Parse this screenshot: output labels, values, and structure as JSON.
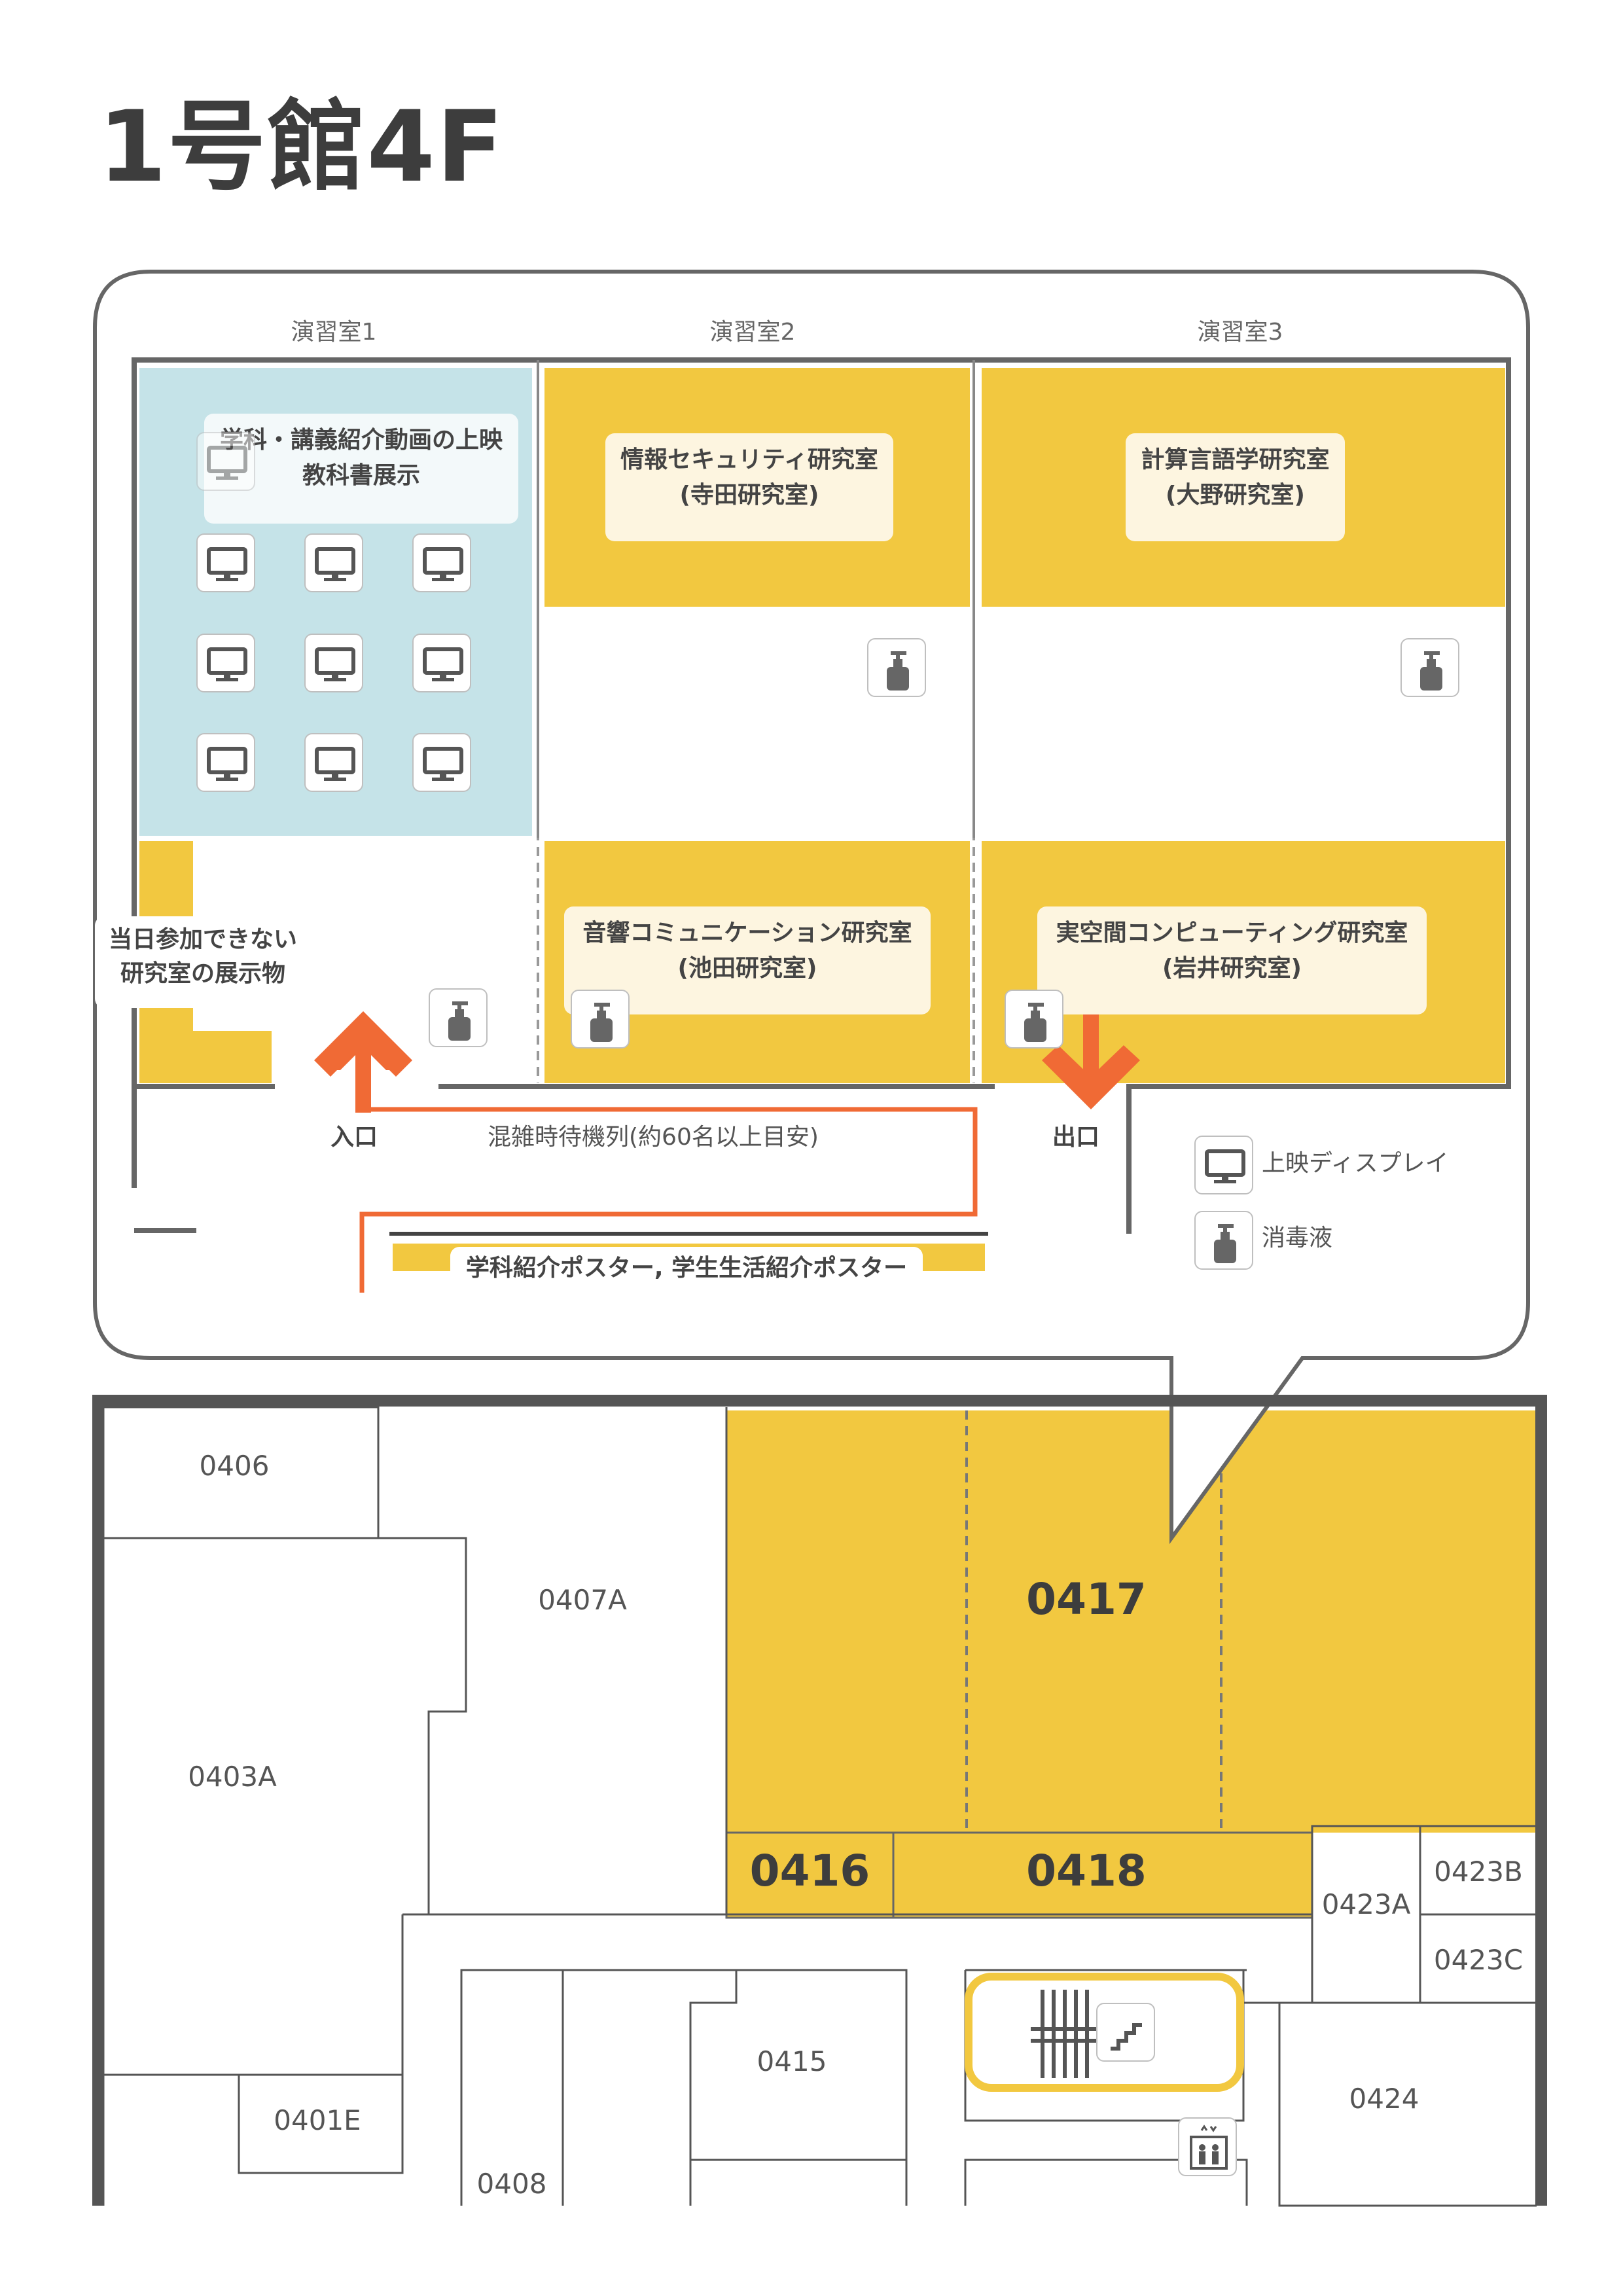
{
  "title": "1号館4F",
  "detail": {
    "room_titles": [
      "演習室1",
      "演習室2",
      "演習室3"
    ],
    "exhibit_label_line1": "学科・講義紹介動画の上映",
    "exhibit_label_line2": "教科書展示",
    "labs": [
      {
        "name": "情報セキュリティ研究室",
        "lab": "(寺田研究室)"
      },
      {
        "name": "計算言語学研究室",
        "lab": "(大野研究室)"
      },
      {
        "name": "音響コミュニケーション研究室",
        "lab": "(池田研究室)"
      },
      {
        "name": "実空間コンピューティング研究室",
        "lab": "(岩井研究室)"
      }
    ],
    "absent_line1": "当日参加できない",
    "absent_line2": "研究室の展示物",
    "entrance": "入口",
    "exit": "出口",
    "queue_note": "混雑時待機列(約60名以上目安)",
    "poster_label": "学科紹介ポスター, 学生生活紹介ポスター",
    "legend": {
      "display": "上映ディスプレイ",
      "sanitizer": "消毒液"
    },
    "colors": {
      "accent": "#f2c840",
      "exhibit": "#c5e3e8",
      "arrow": "#f06a35",
      "wall": "#666666"
    }
  },
  "floor": {
    "rooms": {
      "r0406": "0406",
      "r0407A": "0407A",
      "r0403A": "0403A",
      "r0401E": "0401E",
      "r0408": "0408",
      "r0415": "0415",
      "r0416": "0416",
      "r0417": "0417",
      "r0418": "0418",
      "r0423A": "0423A",
      "r0423B": "0423B",
      "r0423C": "0423C",
      "r0424": "0424"
    },
    "icons": [
      "stairs-icon",
      "elevator-icon"
    ]
  }
}
